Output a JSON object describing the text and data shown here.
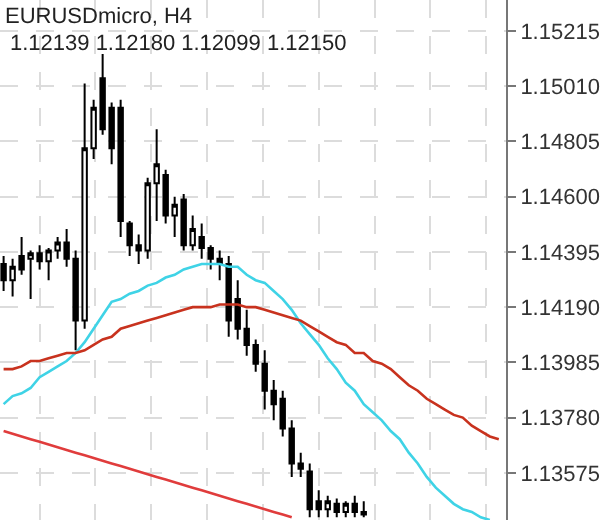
{
  "chart_data": {
    "type": "candlestick",
    "title": "EURUSDmicro, H4",
    "annotations": [
      "1.12139 1.12180 1.12099 1.12150"
    ],
    "categories": [
      null,
      null,
      null,
      null,
      null,
      null,
      null,
      null,
      null,
      null,
      null,
      null,
      null,
      null,
      null,
      null,
      null,
      null,
      null,
      null,
      null,
      null,
      null,
      null,
      null,
      null,
      null,
      null,
      null,
      null,
      null,
      null,
      null,
      null,
      null,
      null,
      null,
      null,
      null,
      null,
      null,
      null,
      null,
      null,
      null,
      null,
      null,
      null,
      null,
      null,
      null,
      null,
      null,
      null,
      null,
      null
    ],
    "ohlc": [
      [
        1.1435,
        1.1438,
        1.1425,
        1.1429
      ],
      [
        1.1429,
        1.1437,
        1.1423,
        1.1434
      ],
      [
        1.1438,
        1.1445,
        1.1431,
        1.1433
      ],
      [
        1.1437,
        1.144,
        1.1422,
        1.1439
      ],
      [
        1.1439,
        1.1442,
        1.1433,
        1.1436
      ],
      [
        1.1436,
        1.1441,
        1.1429,
        1.144
      ],
      [
        1.144,
        1.1445,
        1.1437,
        1.1443
      ],
      [
        1.1443,
        1.1448,
        1.1434,
        1.1437
      ],
      [
        1.1437,
        1.144,
        1.1403,
        1.1414
      ],
      [
        1.1414,
        1.1502,
        1.1411,
        1.1478
      ],
      [
        1.1478,
        1.1496,
        1.1474,
        1.1493
      ],
      [
        1.1504,
        1.1513,
        1.1483,
        1.1485
      ],
      [
        1.1493,
        1.1495,
        1.1472,
        1.1478
      ],
      [
        1.1493,
        1.1496,
        1.1445,
        1.1451
      ],
      [
        1.145,
        1.1451,
        1.1438,
        1.1442
      ],
      [
        1.1442,
        1.1446,
        1.1435,
        1.144
      ],
      [
        1.144,
        1.1467,
        1.1437,
        1.1465
      ],
      [
        1.1465,
        1.1485,
        1.1451,
        1.1472
      ],
      [
        1.1468,
        1.147,
        1.145,
        1.1453
      ],
      [
        1.1453,
        1.146,
        1.1445,
        1.1457
      ],
      [
        1.1459,
        1.1461,
        1.144,
        1.1442
      ],
      [
        1.1442,
        1.1453,
        1.144,
        1.1448
      ],
      [
        1.1445,
        1.145,
        1.1437,
        1.1441
      ],
      [
        1.1441,
        1.1442,
        1.1433,
        1.1437
      ],
      [
        1.1437,
        1.144,
        1.1429,
        1.1435
      ],
      [
        1.1435,
        1.1438,
        1.1408,
        1.1414
      ],
      [
        1.1422,
        1.1429,
        1.1407,
        1.1411
      ],
      [
        1.1411,
        1.1418,
        1.1401,
        1.1405
      ],
      [
        1.1405,
        1.1407,
        1.1395,
        1.1398
      ],
      [
        1.1398,
        1.1403,
        1.1381,
        1.1388
      ],
      [
        1.1388,
        1.1392,
        1.1377,
        1.1383
      ],
      [
        1.1385,
        1.1388,
        1.1371,
        1.1374
      ],
      [
        1.1374,
        1.1377,
        1.1356,
        1.1361
      ],
      [
        1.1361,
        1.1365,
        1.1356,
        1.1359
      ],
      [
        1.1358,
        1.1361,
        1.1341,
        1.1344
      ],
      [
        1.1347,
        1.1351,
        1.1341,
        1.1344
      ],
      [
        1.1344,
        1.1349,
        1.1341,
        1.1347
      ],
      [
        1.1346,
        1.1348,
        1.1341,
        1.1343
      ],
      [
        1.1343,
        1.1347,
        1.1341,
        1.1346
      ],
      [
        1.1346,
        1.1349,
        1.1341,
        1.1343
      ],
      [
        1.1343,
        1.1347,
        1.1341,
        1.1342
      ],
      null,
      null,
      null,
      null,
      null,
      null,
      null,
      null,
      null,
      null,
      null,
      null,
      null,
      null,
      null
    ],
    "series": [
      {
        "type": "line",
        "color": "#3fd3e6",
        "values": [
          1.1383,
          1.1386,
          1.1387,
          1.1389,
          1.1393,
          1.1395,
          1.1397,
          1.1399,
          1.1402,
          1.1406,
          1.1411,
          1.1416,
          1.1421,
          1.1422,
          1.1424,
          1.1425,
          1.1427,
          1.1428,
          1.143,
          1.1431,
          1.1433,
          1.1434,
          1.1435,
          1.1435,
          1.1435,
          1.1434,
          1.1434,
          1.1431,
          1.1429,
          1.1428,
          1.1425,
          1.1422,
          1.1418,
          1.1413,
          1.1409,
          1.1405,
          1.14,
          1.1396,
          1.1391,
          1.1388,
          1.1383,
          1.138,
          1.1377,
          1.1373,
          1.137,
          1.1365,
          1.1361,
          1.1356,
          1.1352,
          1.1349,
          1.1346,
          1.1344,
          1.1343,
          1.1341,
          1.134,
          null
        ]
      },
      {
        "type": "line",
        "color": "#c8321e",
        "values": [
          1.1396,
          1.1396,
          1.1397,
          1.1399,
          1.1399,
          1.14,
          1.1401,
          1.1402,
          1.1402,
          1.1403,
          1.1405,
          1.1407,
          1.1408,
          1.1411,
          1.1412,
          1.1413,
          1.1414,
          1.1415,
          1.1416,
          1.1417,
          1.1418,
          1.1419,
          1.1419,
          1.1419,
          1.142,
          1.142,
          1.142,
          1.1419,
          1.1419,
          1.1418,
          1.1417,
          1.1416,
          1.1415,
          1.1414,
          1.1412,
          1.141,
          1.1408,
          1.1406,
          1.1405,
          1.1402,
          1.1402,
          1.1399,
          1.1398,
          1.1396,
          1.1393,
          1.139,
          1.1388,
          1.1385,
          1.1383,
          1.1381,
          1.1379,
          1.1378,
          1.1375,
          1.1373,
          1.1371,
          1.137
        ]
      },
      {
        "type": "line",
        "color": "#e03c3c",
        "values": [
          1.1373,
          1.1372,
          1.1371,
          1.137,
          1.1369,
          1.1368,
          1.1367,
          1.1366,
          1.1365,
          1.1364,
          1.1363,
          1.1362,
          1.1361,
          1.136,
          1.1359,
          1.1358,
          1.1357,
          1.1356,
          1.1355,
          1.1354,
          1.1353,
          1.1352,
          1.1351,
          1.135,
          1.1349,
          1.1348,
          1.1347,
          1.1346,
          1.1345,
          1.1344,
          1.1343,
          1.1342,
          1.1341,
          null,
          null,
          null,
          null,
          null,
          null,
          null,
          null,
          null,
          null,
          null,
          null,
          null,
          null,
          null,
          null,
          null,
          null,
          null,
          null,
          null,
          null,
          null
        ]
      }
    ],
    "ylim": [
      1.134,
      1.1533
    ],
    "yticks": [
      {
        "value": 1.13575,
        "label": "1.13575"
      },
      {
        "value": 1.1378,
        "label": "1.13780"
      },
      {
        "value": 1.13985,
        "label": "1.13985"
      },
      {
        "value": 1.1419,
        "label": "1.14190"
      },
      {
        "value": 1.14395,
        "label": "1.14395"
      },
      {
        "value": 1.146,
        "label": "1.14600"
      },
      {
        "value": 1.14805,
        "label": "1.14805"
      },
      {
        "value": 1.1501,
        "label": "1.15010"
      },
      {
        "value": 1.15215,
        "label": "1.15215"
      }
    ],
    "grid": true,
    "tick_labels": "y"
  }
}
